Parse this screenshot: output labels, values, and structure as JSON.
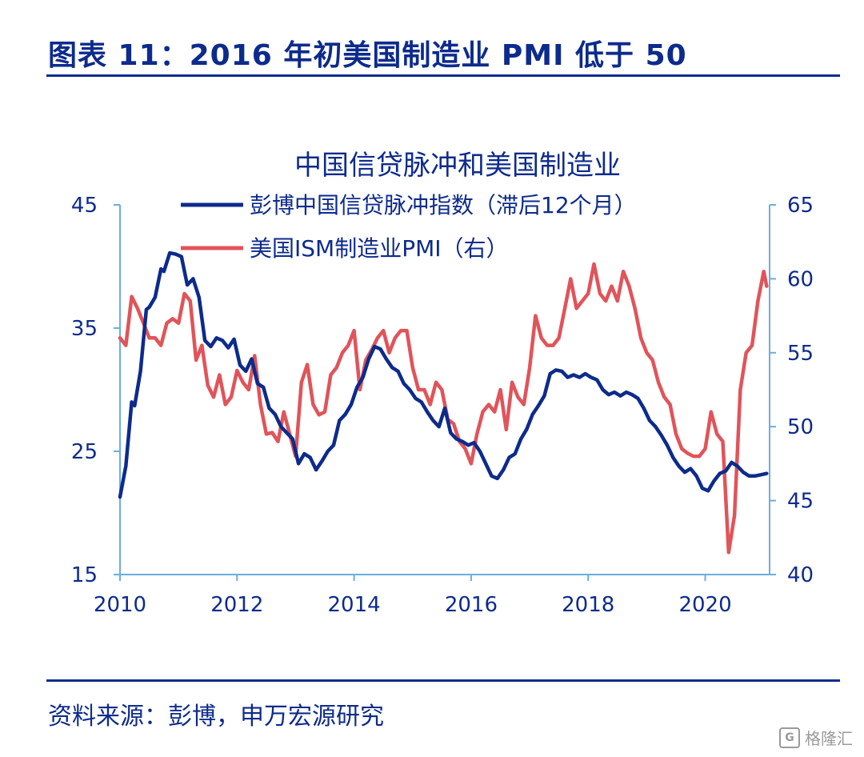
{
  "figure": {
    "title": "图表 11：2016 年初美国制造业 PMI 低于 50",
    "source": "资料来源：彭博，申万宏源研究",
    "watermark": "格隆汇",
    "watermark_logo": "G"
  },
  "chart_data": {
    "type": "line",
    "title": "中国信贷脉冲和美国制造业",
    "xlabel": "",
    "ylabel": "",
    "x_ticks": [
      "2010",
      "2012",
      "2014",
      "2016",
      "2018",
      "2020"
    ],
    "xlim": [
      2010,
      2021.1
    ],
    "ylim_left": [
      15,
      45
    ],
    "ylim_right": [
      40,
      65
    ],
    "y_ticks_left": [
      15,
      25,
      35,
      45
    ],
    "y_ticks_right": [
      40,
      45,
      50,
      55,
      60,
      65
    ],
    "legend_placement": "top-center",
    "colors": {
      "axis": "#6aaedc",
      "text": "#0d2b8c"
    },
    "series": [
      {
        "name": "彭博中国信贷脉冲指数（滞后12个月）",
        "axis": "left",
        "color": "#0d2b8c",
        "x": [
          2010.0,
          2010.1,
          2010.2,
          2010.25,
          2010.35,
          2010.45,
          2010.5,
          2010.6,
          2010.7,
          2010.75,
          2010.85,
          2010.95,
          2011.05,
          2011.15,
          2011.25,
          2011.35,
          2011.45,
          2011.55,
          2011.65,
          2011.75,
          2011.85,
          2011.95,
          2012.05,
          2012.15,
          2012.25,
          2012.35,
          2012.45,
          2012.55,
          2012.65,
          2012.75,
          2012.85,
          2012.95,
          2013.05,
          2013.15,
          2013.25,
          2013.35,
          2013.45,
          2013.55,
          2013.65,
          2013.75,
          2013.85,
          2013.95,
          2014.05,
          2014.15,
          2014.25,
          2014.35,
          2014.45,
          2014.55,
          2014.65,
          2014.75,
          2014.85,
          2014.95,
          2015.05,
          2015.15,
          2015.25,
          2015.35,
          2015.45,
          2015.55,
          2015.65,
          2015.75,
          2015.85,
          2015.95,
          2016.05,
          2016.15,
          2016.25,
          2016.35,
          2016.45,
          2016.55,
          2016.65,
          2016.75,
          2016.85,
          2016.95,
          2017.05,
          2017.15,
          2017.25,
          2017.35,
          2017.45,
          2017.55,
          2017.65,
          2017.75,
          2017.85,
          2017.95,
          2018.05,
          2018.15,
          2018.25,
          2018.35,
          2018.45,
          2018.55,
          2018.65,
          2018.75,
          2018.85,
          2018.95,
          2019.05,
          2019.15,
          2019.25,
          2019.35,
          2019.45,
          2019.55,
          2019.65,
          2019.75,
          2019.85,
          2019.95,
          2020.05,
          2020.15,
          2020.25,
          2020.35,
          2020.45,
          2020.55,
          2020.65,
          2020.75,
          2020.85,
          2020.95,
          2021.05
        ],
        "values": [
          21.3,
          23.8,
          29.0,
          28.7,
          31.5,
          36.5,
          36.7,
          37.5,
          39.8,
          39.6,
          41.1,
          41.0,
          40.8,
          38.5,
          39.0,
          37.5,
          34.0,
          33.5,
          34.2,
          34.0,
          33.4,
          34.1,
          32.0,
          31.5,
          32.5,
          30.5,
          30.2,
          28.5,
          28.0,
          27.0,
          26.5,
          26.0,
          24.0,
          24.8,
          24.5,
          23.5,
          24.2,
          25.0,
          25.5,
          27.5,
          28.0,
          28.8,
          30.2,
          31.0,
          32.5,
          33.5,
          33.3,
          32.5,
          31.8,
          31.5,
          30.5,
          30.0,
          29.3,
          29.0,
          28.2,
          27.5,
          27.0,
          28.5,
          26.5,
          26.0,
          25.8,
          25.5,
          25.7,
          25.0,
          24.0,
          23.0,
          22.8,
          23.5,
          24.5,
          24.8,
          26.0,
          26.8,
          28.0,
          28.7,
          29.5,
          31.3,
          31.6,
          31.5,
          31.0,
          31.2,
          31.0,
          31.3,
          31.0,
          30.8,
          30.0,
          29.6,
          29.8,
          29.5,
          29.8,
          29.6,
          29.3,
          28.5,
          27.5,
          27.0,
          26.3,
          25.5,
          24.5,
          23.8,
          23.3,
          23.6,
          23.0,
          22.0,
          21.8,
          22.6,
          23.2,
          23.4,
          24.1,
          23.8,
          23.3,
          23.0,
          23.0,
          23.1,
          23.2
        ]
      },
      {
        "name": "美国ISM制造业PMI（右）",
        "axis": "right",
        "color": "#e0545a",
        "x": [
          2010.0,
          2010.1,
          2010.2,
          2010.3,
          2010.4,
          2010.5,
          2010.6,
          2010.7,
          2010.8,
          2010.9,
          2011.0,
          2011.1,
          2011.2,
          2011.3,
          2011.4,
          2011.5,
          2011.6,
          2011.7,
          2011.8,
          2011.9,
          2012.0,
          2012.1,
          2012.2,
          2012.3,
          2012.4,
          2012.5,
          2012.6,
          2012.7,
          2012.8,
          2012.9,
          2013.0,
          2013.1,
          2013.2,
          2013.3,
          2013.4,
          2013.5,
          2013.6,
          2013.7,
          2013.8,
          2013.9,
          2014.0,
          2014.1,
          2014.2,
          2014.3,
          2014.4,
          2014.5,
          2014.6,
          2014.7,
          2014.8,
          2014.9,
          2015.0,
          2015.1,
          2015.2,
          2015.3,
          2015.4,
          2015.5,
          2015.6,
          2015.7,
          2015.8,
          2015.9,
          2016.0,
          2016.1,
          2016.2,
          2016.3,
          2016.4,
          2016.5,
          2016.6,
          2016.7,
          2016.8,
          2016.9,
          2017.0,
          2017.1,
          2017.2,
          2017.3,
          2017.4,
          2017.5,
          2017.6,
          2017.7,
          2017.8,
          2017.9,
          2018.0,
          2018.1,
          2018.2,
          2018.3,
          2018.4,
          2018.5,
          2018.6,
          2018.7,
          2018.8,
          2018.9,
          2019.0,
          2019.1,
          2019.2,
          2019.3,
          2019.4,
          2019.5,
          2019.6,
          2019.7,
          2019.8,
          2019.9,
          2020.0,
          2020.1,
          2020.2,
          2020.3,
          2020.4,
          2020.5,
          2020.6,
          2020.7,
          2020.8,
          2020.9,
          2021.0,
          2021.05
        ],
        "values": [
          56.0,
          55.5,
          58.8,
          58.0,
          57.0,
          56.0,
          56.0,
          55.5,
          57.0,
          57.3,
          57.0,
          59.0,
          58.5,
          54.5,
          55.5,
          52.8,
          52.0,
          53.5,
          51.5,
          52.0,
          53.8,
          53.0,
          52.5,
          54.8,
          51.5,
          49.5,
          49.6,
          49.0,
          51.0,
          49.5,
          48.0,
          53.0,
          54.2,
          51.5,
          50.8,
          51.0,
          53.5,
          54.0,
          55.0,
          55.5,
          56.5,
          52.5,
          54.5,
          55.2,
          56.0,
          56.5,
          55.0,
          56.0,
          56.5,
          56.5,
          54.0,
          52.5,
          52.5,
          51.5,
          53.0,
          52.5,
          50.5,
          50.2,
          49.0,
          48.5,
          47.5,
          49.5,
          51.0,
          51.5,
          51.0,
          52.5,
          49.8,
          53.0,
          52.0,
          51.5,
          54.0,
          57.5,
          56.0,
          55.5,
          55.5,
          56.0,
          58.0,
          60.0,
          58.0,
          58.5,
          59.0,
          61.0,
          59.0,
          58.5,
          59.5,
          58.5,
          60.5,
          59.5,
          58.0,
          56.0,
          55.0,
          54.5,
          53.0,
          52.0,
          51.5,
          49.5,
          48.5,
          48.2,
          48.0,
          48.0,
          48.5,
          51.0,
          49.5,
          49.0,
          41.5,
          44.0,
          52.5,
          55.0,
          55.5,
          58.5,
          60.5,
          59.5
        ]
      }
    ]
  }
}
